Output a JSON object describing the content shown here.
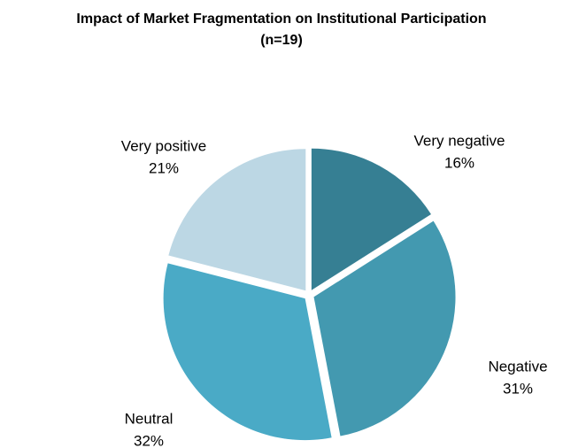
{
  "chart_data": {
    "type": "pie",
    "title": "Impact of Market Fragmentation on Institutional Participation",
    "subtitle": "(n=19)",
    "categories": [
      "Very negative",
      "Negative",
      "Neutral",
      "Very positive"
    ],
    "values": [
      16,
      31,
      32,
      21
    ],
    "value_labels": [
      "16%",
      "31%",
      "32%",
      "21%"
    ],
    "colors": [
      "#367f93",
      "#4399b0",
      "#4aaac6",
      "#bcd7e4"
    ]
  }
}
